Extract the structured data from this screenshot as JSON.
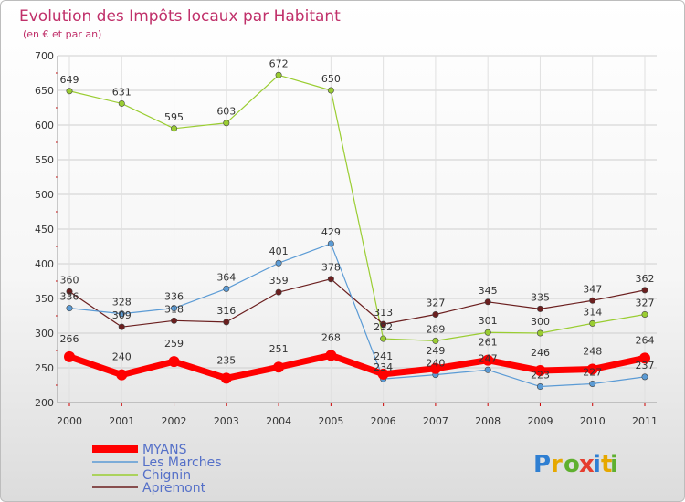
{
  "chart_data": {
    "type": "line",
    "title": "Evolution des Impôts locaux par Habitant",
    "subtitle": "(en € et par an)",
    "xlabel": "",
    "ylabel": "",
    "categories": [
      "2000",
      "2001",
      "2002",
      "2003",
      "2004",
      "2005",
      "2006",
      "2007",
      "2008",
      "2009",
      "2010",
      "2011"
    ],
    "ylim": [
      200,
      700
    ],
    "yticks": [
      "200",
      "250",
      "300",
      "350",
      "400",
      "450",
      "500",
      "550",
      "600",
      "650",
      "700"
    ],
    "grid": true,
    "legend_position": "bottom-left",
    "series": [
      {
        "name": "MYANS",
        "color": "#ff0000",
        "values": [
          266,
          240,
          259,
          235,
          251,
          268,
          241,
          249,
          261,
          246,
          248,
          264
        ]
      },
      {
        "name": "Les Marches",
        "color": "#5b9bd5",
        "values": [
          336,
          328,
          336,
          364,
          401,
          429,
          234,
          240,
          247,
          223,
          227,
          237
        ]
      },
      {
        "name": "Chignin",
        "color": "#9acd32",
        "values": [
          649,
          631,
          595,
          603,
          672,
          650,
          292,
          289,
          301,
          300,
          314,
          327
        ]
      },
      {
        "name": "Apremont",
        "color": "#6b1f1f",
        "values": [
          360,
          309,
          318,
          316,
          359,
          378,
          313,
          327,
          345,
          335,
          347,
          362
        ]
      }
    ]
  },
  "logo": {
    "text": "Proxiti"
  }
}
